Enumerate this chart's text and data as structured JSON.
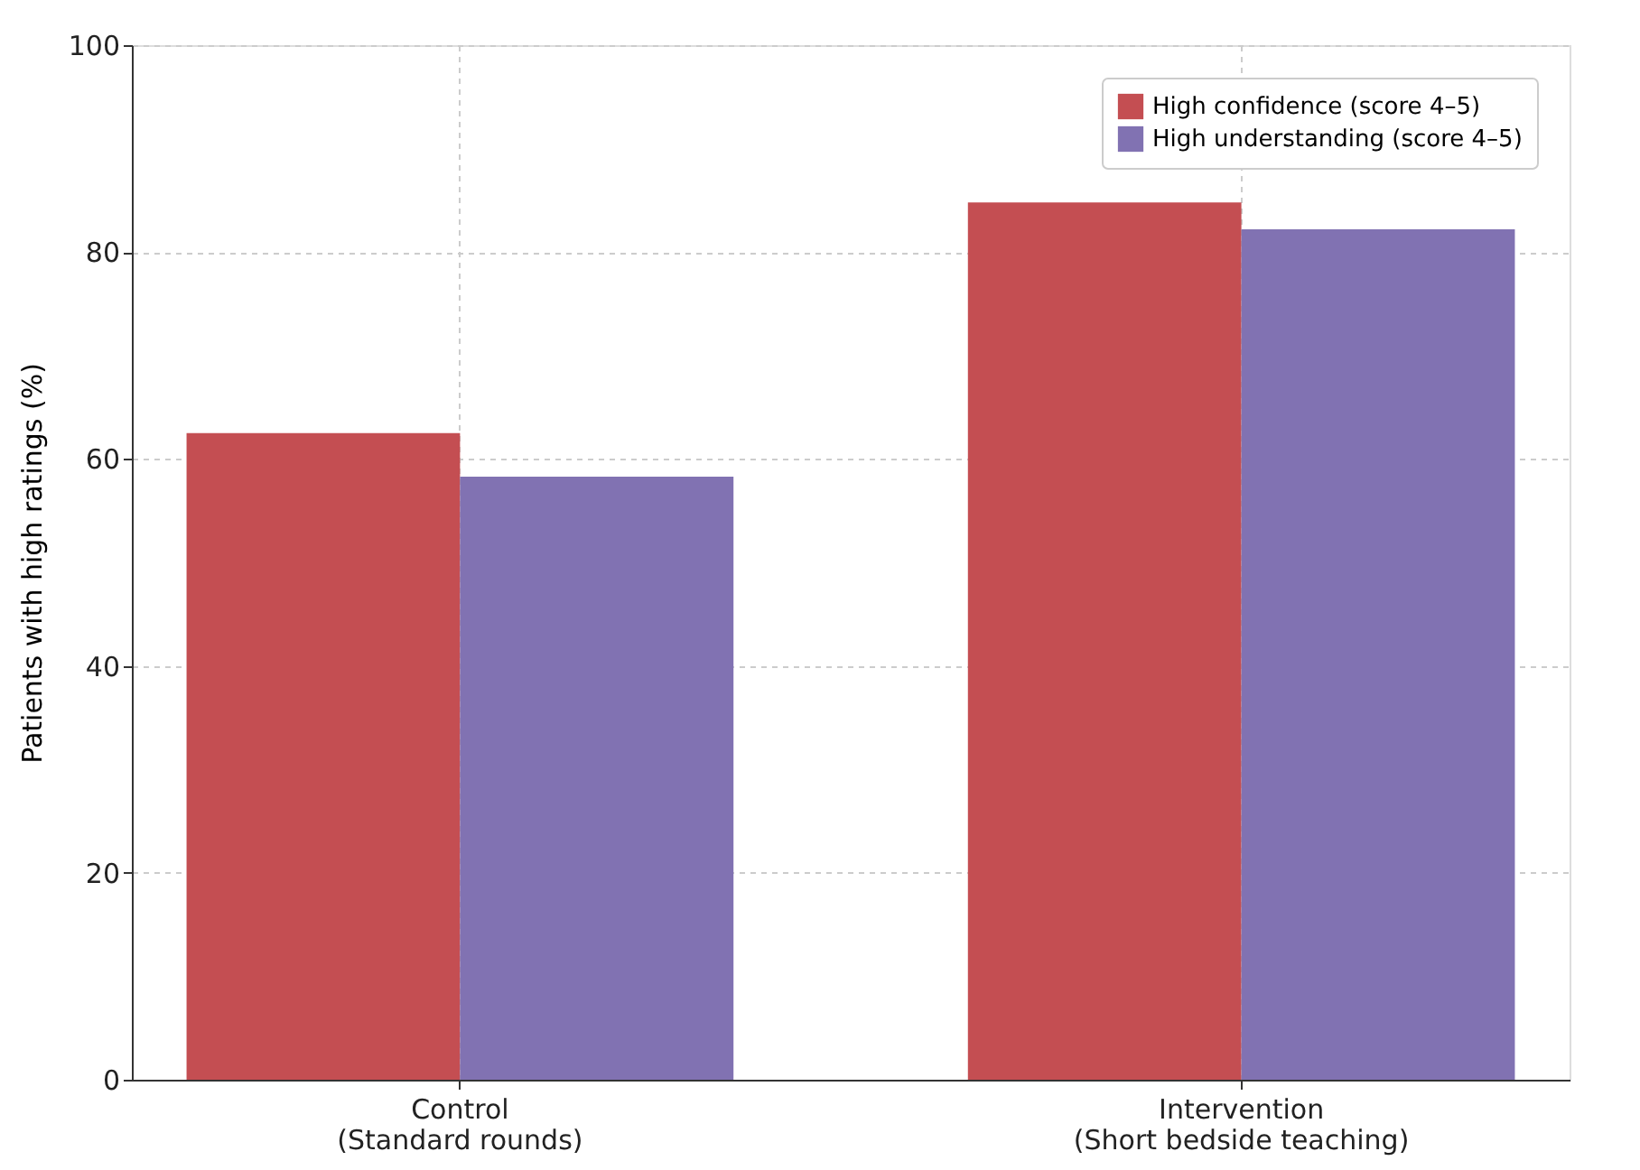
{
  "chart_data": {
    "type": "bar",
    "categories": [
      "Control\n(Standard rounds)",
      "Intervention\n(Short bedside teaching)"
    ],
    "series": [
      {
        "name": "High confidence (score 4–5)",
        "color": "#c44e52",
        "values": [
          62.5,
          84.8
        ]
      },
      {
        "name": "High understanding (score 4–5)",
        "color": "#8172b2",
        "values": [
          58.3,
          82.2
        ]
      }
    ],
    "ylabel": "Patients with high ratings (%)",
    "ylim": [
      0,
      100
    ],
    "yticks": [
      0,
      20,
      40,
      60,
      80,
      100
    ],
    "grid": true,
    "legend": "top right"
  }
}
